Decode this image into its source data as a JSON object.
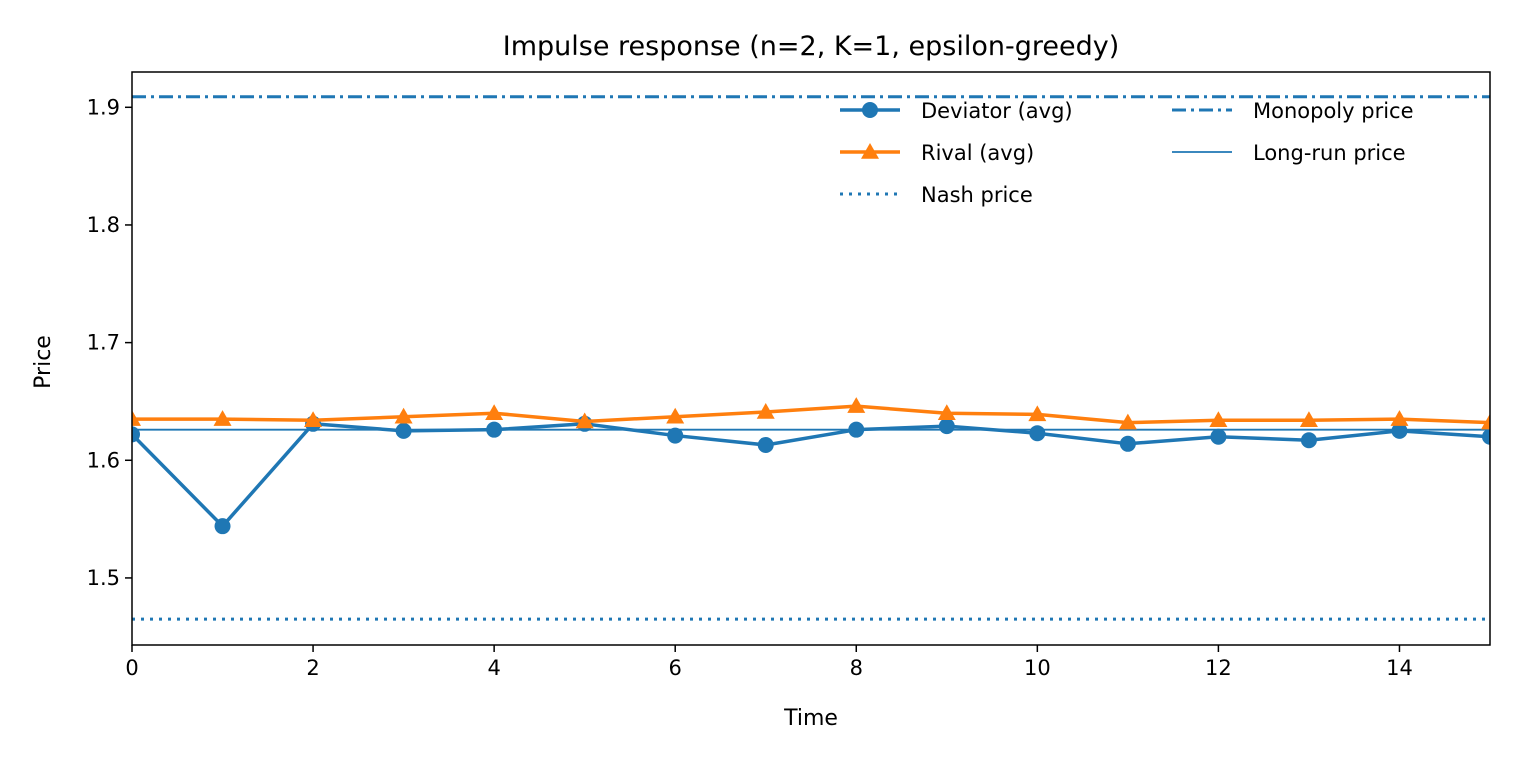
{
  "chart_data": {
    "type": "line",
    "title": "Impulse response (n=2, K=1, epsilon-greedy)",
    "xlabel": "Time",
    "ylabel": "Price",
    "xlim": [
      0,
      15
    ],
    "ylim": [
      1.443,
      1.93
    ],
    "xticks": [
      "0",
      "2",
      "4",
      "6",
      "8",
      "10",
      "12",
      "14"
    ],
    "yticks": [
      "1.5",
      "1.6",
      "1.7",
      "1.8",
      "1.9"
    ],
    "grid": false,
    "legend_position": "upper-right",
    "x": [
      0,
      1,
      2,
      3,
      4,
      5,
      6,
      7,
      8,
      9,
      10,
      11,
      12,
      13,
      14,
      15
    ],
    "series": [
      {
        "name": "Deviator (avg)",
        "color": "#1f77b4",
        "marker": "circle",
        "values": [
          1.622,
          1.544,
          1.631,
          1.625,
          1.626,
          1.631,
          1.621,
          1.613,
          1.626,
          1.629,
          1.623,
          1.614,
          1.62,
          1.617,
          1.625,
          1.62
        ]
      },
      {
        "name": "Rival (avg)",
        "color": "#ff7f0e",
        "marker": "triangle",
        "values": [
          1.635,
          1.635,
          1.634,
          1.637,
          1.64,
          1.633,
          1.637,
          1.641,
          1.646,
          1.64,
          1.639,
          1.632,
          1.634,
          1.634,
          1.635,
          1.632
        ]
      }
    ],
    "reference_lines": [
      {
        "name": "Nash price",
        "value": 1.465,
        "color": "#1f77b4",
        "style": "dotted"
      },
      {
        "name": "Monopoly price",
        "value": 1.909,
        "color": "#1f77b4",
        "style": "dashdot"
      },
      {
        "name": "Long-run price",
        "value": 1.626,
        "color": "#1f77b4",
        "style": "solid-thin"
      }
    ]
  }
}
